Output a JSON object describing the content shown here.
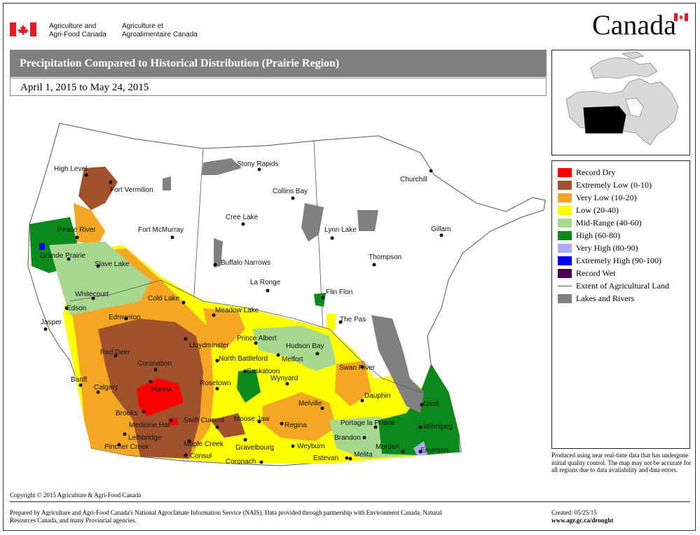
{
  "header": {
    "dept_en_line1": "Agriculture and",
    "dept_en_line2": "Agri-Food Canada",
    "dept_fr_line1": "Agriculture et",
    "dept_fr_line2": "Agroalimentaire Canada",
    "wordmark": "Canada"
  },
  "title": "Precipitation Compared to Historical Distribution (Prairie Region)",
  "date_range": "April 1, 2015 to May 24, 2015",
  "legend": {
    "items": [
      {
        "label": "Record Dry",
        "color": "#ff0000",
        "kind": "swatch"
      },
      {
        "label": "Extremely Low (0-10)",
        "color": "#a0522d",
        "kind": "swatch"
      },
      {
        "label": "Very Low (10-20)",
        "color": "#f5a623",
        "kind": "swatch"
      },
      {
        "label": "Low (20-40)",
        "color": "#ffff00",
        "kind": "swatch"
      },
      {
        "label": "Mid-Range (40-60)",
        "color": "#a8d890",
        "kind": "swatch"
      },
      {
        "label": "High (60-80)",
        "color": "#0a8a1a",
        "kind": "swatch"
      },
      {
        "label": "Very High (80-90)",
        "color": "#b0a8f8",
        "kind": "swatch"
      },
      {
        "label": "Extremely High (90-100)",
        "color": "#0000ff",
        "kind": "swatch"
      },
      {
        "label": "Record Wet",
        "color": "#4b0050",
        "kind": "swatch"
      },
      {
        "label": "Extent of Agricultural Land",
        "color": "#555555",
        "kind": "line"
      },
      {
        "label": "Lakes and Rivers",
        "color": "#808080",
        "kind": "swatch"
      }
    ]
  },
  "cities": [
    {
      "name": "High Level"
    },
    {
      "name": "Fort Vermilion"
    },
    {
      "name": "Peace River"
    },
    {
      "name": "Fort McMurray"
    },
    {
      "name": "Grande Prairie"
    },
    {
      "name": "Slave Lake"
    },
    {
      "name": "Whitecourt"
    },
    {
      "name": "Cold Lake"
    },
    {
      "name": "Edson"
    },
    {
      "name": "Edmonton"
    },
    {
      "name": "Jasper"
    },
    {
      "name": "Red Deer"
    },
    {
      "name": "Lloydminster"
    },
    {
      "name": "Coronation"
    },
    {
      "name": "Banff"
    },
    {
      "name": "Calgary"
    },
    {
      "name": "Hanna"
    },
    {
      "name": "Brooks"
    },
    {
      "name": "Medicine Hat"
    },
    {
      "name": "Lethbridge"
    },
    {
      "name": "Pincher Creek"
    },
    {
      "name": "Stony Rapids"
    },
    {
      "name": "Collins Bay"
    },
    {
      "name": "Cree Lake"
    },
    {
      "name": "Buffalo Narrows"
    },
    {
      "name": "La Ronge"
    },
    {
      "name": "Meadow Lake"
    },
    {
      "name": "Prince Albert"
    },
    {
      "name": "North Battleford"
    },
    {
      "name": "Melfort"
    },
    {
      "name": "Hudson Bay"
    },
    {
      "name": "Saskatoon"
    },
    {
      "name": "Wynyard"
    },
    {
      "name": "Rosetown"
    },
    {
      "name": "Swift Current"
    },
    {
      "name": "Moose Jaw"
    },
    {
      "name": "Regina"
    },
    {
      "name": "Melville"
    },
    {
      "name": "Maple Creek"
    },
    {
      "name": "Consul"
    },
    {
      "name": "Gravelbourg"
    },
    {
      "name": "Weyburn"
    },
    {
      "name": "Coronach"
    },
    {
      "name": "Estevan"
    },
    {
      "name": "Churchill"
    },
    {
      "name": "Lynn Lake"
    },
    {
      "name": "Gillam"
    },
    {
      "name": "Thompson"
    },
    {
      "name": "Flin Flon"
    },
    {
      "name": "The Pas"
    },
    {
      "name": "Swan River"
    },
    {
      "name": "Dauphin"
    },
    {
      "name": "Gimli"
    },
    {
      "name": "Portage la Prairie"
    },
    {
      "name": "Winnipeg"
    },
    {
      "name": "Brandon"
    },
    {
      "name": "Morden"
    },
    {
      "name": "Melita"
    },
    {
      "name": "Emerson"
    }
  ],
  "disclaimer": "Produced using near real-time data that has undergone initial quality control.  The map may not be accurate for all regions due to data availability and data errors.",
  "copyright": "Copyright © 2015 Agriculture & Agri-Food Canada",
  "prepared_by": "Prepared by Agriculture and Agri-Food Canada's National Agroclimate Information Service (NAIS).   Data provided through partnership with Environment Canada, Natural Resources Canada, and many Provincial agencies.",
  "created": "Created: 05/25/15",
  "url": "www.agr.gc.ca/drought"
}
